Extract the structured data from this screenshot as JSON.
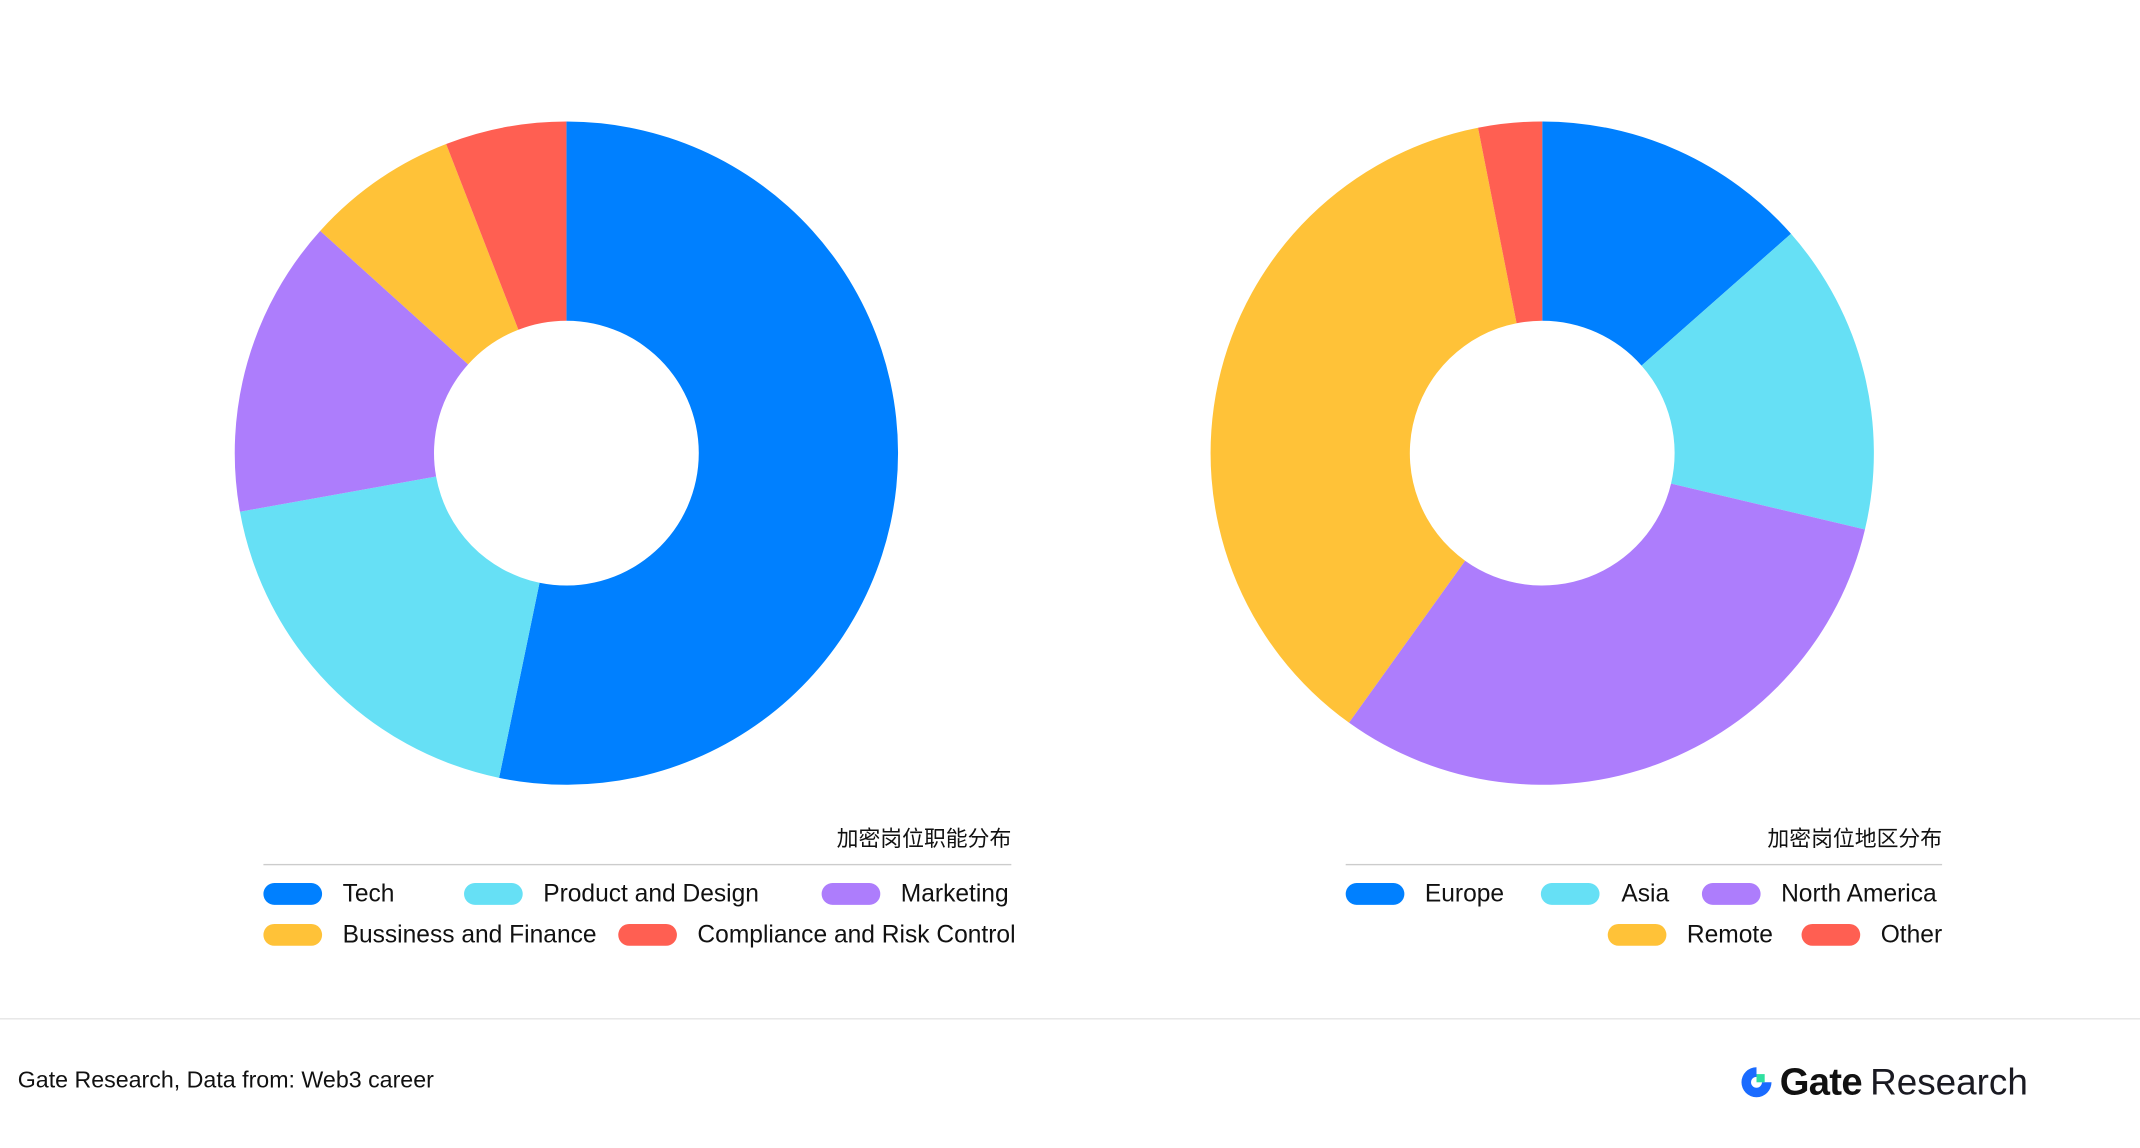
{
  "chart_data": [
    {
      "type": "pie",
      "variant": "donut",
      "title": "加密岗位职能分布",
      "categories": [
        "Tech",
        "Product and Design",
        "Marketing",
        "Bussiness and Finance",
        "Compliance and Risk Control"
      ],
      "values": [
        53.2,
        18.9,
        14.5,
        7.4,
        5.9
      ],
      "unit": "%",
      "colors": [
        "#0080ff",
        "#66e0f5",
        "#ad7dfc",
        "#ffc238",
        "#ff5f52"
      ],
      "legend_placement": "bottom"
    },
    {
      "type": "pie",
      "variant": "donut",
      "title": "加密岗位地区分布",
      "categories": [
        "Europe",
        "Asia",
        "North America",
        "Remote",
        "Other"
      ],
      "values": [
        13.5,
        15.2,
        31.2,
        37.0,
        3.1
      ],
      "unit": "%",
      "colors": [
        "#0080ff",
        "#66e0f5",
        "#ad7dfc",
        "#ffc238",
        "#ff5f52"
      ],
      "legend_placement": "bottom"
    }
  ],
  "footer": {
    "source": "Gate Research, Data from: Web3 career",
    "logo_text": "Gate Research",
    "logo_word1": "Gate",
    "logo_word2": "Research"
  }
}
